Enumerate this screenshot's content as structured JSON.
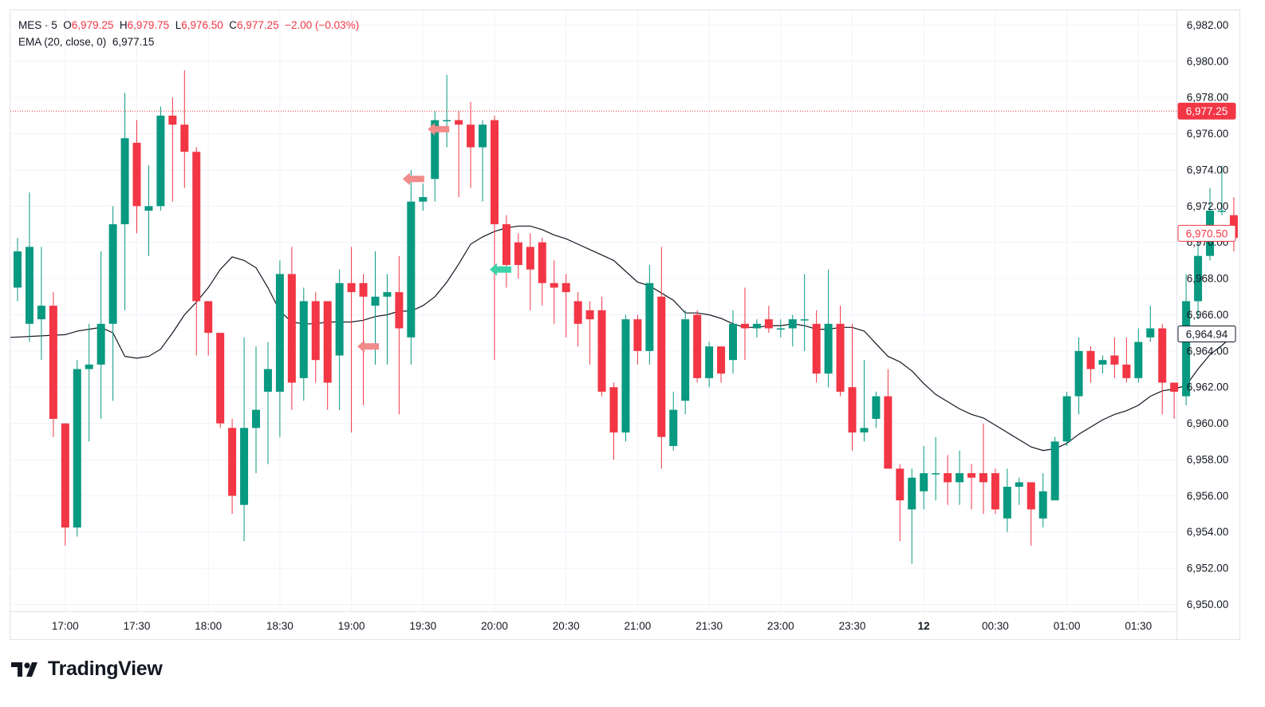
{
  "legend": {
    "symbol": "MES · 5",
    "open_label": "O",
    "open": "6,979.25",
    "high_label": "H",
    "high": "6,979.75",
    "low_label": "L",
    "low": "6,976.50",
    "close_label": "C",
    "close": "6,977.25",
    "change": "−2.00 (−0.03%)",
    "ema_label": "EMA (20, close, 0)",
    "ema_value": "6,977.15"
  },
  "branding": {
    "name": "TradingView",
    "logo_icon": "tradingview-logo-icon"
  },
  "colors": {
    "up": "#089981",
    "down": "#f23645",
    "ema": "#131722",
    "grid": "#f0f3fa",
    "axis_text": "#131722",
    "marker_down": "#f28b8b",
    "marker_up": "#3dd3a8"
  },
  "chart_data": {
    "type": "candlestick",
    "ylim": [
      6949.5,
      6982.8
    ],
    "y_ticks": [
      "6,950.00",
      "6,952.00",
      "6,954.00",
      "6,956.00",
      "6,958.00",
      "6,960.00",
      "6,962.00",
      "6,964.00",
      "6,966.00",
      "6,968.00",
      "6,970.00",
      "6,972.00",
      "6,974.00",
      "6,976.00",
      "6,978.00",
      "6,980.00",
      "6,982.00"
    ],
    "x_ticks": [
      {
        "label": "17:00",
        "bar": 4,
        "bold": false
      },
      {
        "label": "17:30",
        "bar": 10,
        "bold": false
      },
      {
        "label": "18:00",
        "bar": 16,
        "bold": false
      },
      {
        "label": "18:30",
        "bar": 22,
        "bold": false
      },
      {
        "label": "19:00",
        "bar": 28,
        "bold": false
      },
      {
        "label": "19:30",
        "bar": 34,
        "bold": false
      },
      {
        "label": "20:00",
        "bar": 40,
        "bold": false
      },
      {
        "label": "20:30",
        "bar": 46,
        "bold": false
      },
      {
        "label": "21:00",
        "bar": 52,
        "bold": false
      },
      {
        "label": "21:30",
        "bar": 58,
        "bold": false
      },
      {
        "label": "23:00",
        "bar": 64,
        "bold": false
      },
      {
        "label": "23:30",
        "bar": 70,
        "bold": false
      },
      {
        "label": "12",
        "bar": 76,
        "bold": true
      },
      {
        "label": "00:30",
        "bar": 82,
        "bold": false
      },
      {
        "label": "01:00",
        "bar": 88,
        "bold": false
      },
      {
        "label": "01:30",
        "bar": 94,
        "bold": false
      }
    ],
    "candles": [
      [
        6967.5,
        6969.5,
        6966.75,
        6970.25
      ],
      [
        6965.5,
        6969.75,
        6964.5,
        6972.75
      ],
      [
        6965.75,
        6966.5,
        6963.5,
        6969.75
      ],
      [
        6966.5,
        6960.25,
        6959.25,
        6967.25
      ],
      [
        6960.0,
        6954.25,
        6953.25,
        6960.0
      ],
      [
        6954.25,
        6963.0,
        6953.75,
        6963.5
      ],
      [
        6963.0,
        6963.25,
        6959.0,
        6965.5
      ],
      [
        6963.25,
        6965.5,
        6960.25,
        6969.5
      ],
      [
        6965.5,
        6971.0,
        6961.25,
        6972.0
      ],
      [
        6971.0,
        6975.75,
        6966.25,
        6978.25
      ],
      [
        6975.5,
        6972.0,
        6970.5,
        6976.75
      ],
      [
        6971.75,
        6972.0,
        6969.25,
        6974.25
      ],
      [
        6972.0,
        6977.0,
        6971.75,
        6977.5
      ],
      [
        6977.0,
        6976.5,
        6972.25,
        6978.0
      ],
      [
        6976.5,
        6975.0,
        6973.0,
        6979.5
      ],
      [
        6975.0,
        6966.75,
        6963.75,
        6975.25
      ],
      [
        6966.75,
        6965.0,
        6963.75,
        6966.75
      ],
      [
        6965.0,
        6960.0,
        6959.75,
        6965.0
      ],
      [
        6959.75,
        6956.0,
        6955.0,
        6960.25
      ],
      [
        6955.5,
        6959.75,
        6953.5,
        6964.75
      ],
      [
        6959.75,
        6960.75,
        6957.25,
        6964.25
      ],
      [
        6961.75,
        6963.0,
        6957.75,
        6964.5
      ],
      [
        6961.75,
        6968.25,
        6959.25,
        6969.0
      ],
      [
        6968.25,
        6962.25,
        6960.75,
        6969.75
      ],
      [
        6962.5,
        6966.75,
        6961.25,
        6967.5
      ],
      [
        6966.75,
        6963.5,
        6962.25,
        6967.25
      ],
      [
        6966.75,
        6962.25,
        6960.75,
        6966.5
      ],
      [
        6963.75,
        6967.75,
        6960.75,
        6968.5
      ],
      [
        6967.75,
        6967.25,
        6959.5,
        6969.75
      ],
      [
        6967.75,
        6967.0,
        6961.0,
        6968.25
      ],
      [
        6966.5,
        6967.0,
        6963.25,
        6969.5
      ],
      [
        6967.0,
        6967.25,
        6963.25,
        6968.25
      ],
      [
        6967.25,
        6965.25,
        6960.5,
        6969.25
      ],
      [
        6964.75,
        6972.25,
        6963.25,
        6974.0
      ],
      [
        6972.25,
        6972.5,
        6971.75,
        6973.25
      ],
      [
        6973.5,
        6976.75,
        6972.25,
        6977.25
      ],
      [
        6976.75,
        6976.75,
        6975.25,
        6979.25
      ],
      [
        6976.75,
        6976.5,
        6972.5,
        6977.25
      ],
      [
        6976.5,
        6975.25,
        6973.0,
        6977.75
      ],
      [
        6975.25,
        6976.5,
        6972.25,
        6976.75
      ],
      [
        6976.75,
        6971.0,
        6963.5,
        6977.0
      ],
      [
        6971.0,
        6968.75,
        6967.5,
        6971.5
      ],
      [
        6970.0,
        6968.75,
        6968.0,
        6970.5
      ],
      [
        6969.75,
        6968.5,
        6966.25,
        6970.5
      ],
      [
        6970.0,
        6967.75,
        6966.5,
        6970.25
      ],
      [
        6967.75,
        6967.5,
        6965.5,
        6969.0
      ],
      [
        6967.75,
        6967.25,
        6964.75,
        6968.25
      ],
      [
        6966.75,
        6965.5,
        6964.25,
        6967.25
      ],
      [
        6966.25,
        6965.75,
        6963.25,
        6966.75
      ],
      [
        6966.25,
        6961.75,
        6961.5,
        6967.0
      ],
      [
        6962.0,
        6959.5,
        6958.0,
        6962.25
      ],
      [
        6959.5,
        6965.75,
        6959.0,
        6966.0
      ],
      [
        6965.75,
        6964.0,
        6963.25,
        6966.0
      ],
      [
        6964.0,
        6967.75,
        6963.25,
        6968.75
      ],
      [
        6967.0,
        6959.25,
        6957.5,
        6969.75
      ],
      [
        6958.75,
        6960.75,
        6958.5,
        6961.75
      ],
      [
        6961.25,
        6965.75,
        6960.5,
        6966.25
      ],
      [
        6966.0,
        6962.5,
        6962.25,
        6966.25
      ],
      [
        6962.5,
        6964.25,
        6962.0,
        6964.5
      ],
      [
        6964.25,
        6962.75,
        6962.25,
        6964.25
      ],
      [
        6963.5,
        6965.5,
        6962.75,
        6966.25
      ],
      [
        6965.5,
        6965.25,
        6963.5,
        6967.5
      ],
      [
        6965.25,
        6965.5,
        6964.75,
        6965.75
      ],
      [
        6965.75,
        6965.25,
        6965.0,
        6966.5
      ],
      [
        6965.25,
        6965.25,
        6964.75,
        6965.75
      ],
      [
        6965.25,
        6965.75,
        6964.25,
        6966.0
      ],
      [
        6965.75,
        6965.75,
        6964.0,
        6968.25
      ],
      [
        6965.5,
        6962.75,
        6962.25,
        6966.25
      ],
      [
        6962.75,
        6965.5,
        6962.0,
        6968.5
      ],
      [
        6965.5,
        6961.75,
        6961.5,
        6966.5
      ],
      [
        6962.0,
        6959.5,
        6958.5,
        6965.5
      ],
      [
        6959.5,
        6959.75,
        6959.0,
        6963.5
      ],
      [
        6960.25,
        6961.5,
        6959.75,
        6961.75
      ],
      [
        6961.5,
        6957.5,
        6957.5,
        6963.0
      ],
      [
        6957.5,
        6955.75,
        6953.5,
        6957.75
      ],
      [
        6955.25,
        6957.0,
        6952.25,
        6957.5
      ],
      [
        6956.25,
        6957.25,
        6955.25,
        6958.75
      ],
      [
        6957.25,
        6957.25,
        6955.75,
        6959.25
      ],
      [
        6957.25,
        6956.75,
        6955.5,
        6958.25
      ],
      [
        6956.75,
        6957.25,
        6955.5,
        6958.5
      ],
      [
        6957.25,
        6957.0,
        6955.25,
        6957.75
      ],
      [
        6957.25,
        6956.75,
        6955.0,
        6960.0
      ],
      [
        6957.25,
        6955.25,
        6955.0,
        6957.5
      ],
      [
        6954.75,
        6956.5,
        6954.0,
        6957.5
      ],
      [
        6956.5,
        6956.75,
        6955.5,
        6957.0
      ],
      [
        6956.75,
        6955.25,
        6953.25,
        6956.75
      ],
      [
        6954.75,
        6956.25,
        6954.25,
        6957.25
      ],
      [
        6955.75,
        6959.0,
        6955.75,
        6959.25
      ],
      [
        6959.0,
        6961.5,
        6958.75,
        6961.75
      ],
      [
        6961.5,
        6964.0,
        6960.5,
        6964.75
      ],
      [
        6964.0,
        6963.0,
        6962.25,
        6964.25
      ],
      [
        6963.25,
        6963.5,
        6962.75,
        6963.75
      ],
      [
        6963.75,
        6963.25,
        6962.5,
        6964.75
      ],
      [
        6963.25,
        6962.5,
        6962.25,
        6964.75
      ],
      [
        6962.5,
        6964.5,
        6962.25,
        6965.25
      ],
      [
        6964.75,
        6965.25,
        6964.5,
        6966.5
      ],
      [
        6965.25,
        6962.25,
        6960.5,
        6965.5
      ],
      [
        6962.25,
        6961.75,
        6960.25,
        6962.25
      ],
      [
        6961.5,
        6966.75,
        6961.0,
        6968.25
      ],
      [
        6966.75,
        6969.25,
        6965.75,
        6970.5
      ],
      [
        6969.25,
        6971.75,
        6969.0,
        6973.0
      ],
      [
        6971.75,
        6971.75,
        6971.5,
        6974.25
      ],
      [
        6971.5,
        6970.25,
        6969.5,
        6972.5
      ]
    ],
    "ema": [
      6964.9,
      6965.1,
      6965.2,
      6965.3,
      6965.0,
      6963.7,
      6963.6,
      6963.7,
      6964.1,
      6965.0,
      6966.0,
      6966.7,
      6967.5,
      6968.5,
      6969.2,
      6969.0,
      6968.6,
      6967.5,
      6966.2,
      6965.6,
      6965.5,
      6965.5,
      6965.6,
      6965.6,
      6965.6,
      6965.7,
      6965.9,
      6966.0,
      6966.2,
      6966.2,
      6966.5,
      6967.0,
      6967.8,
      6968.8,
      6969.9,
      6970.3,
      6970.6,
      6970.8,
      6970.9,
      6970.9,
      6970.7,
      6970.4,
      6970.2,
      6969.9,
      6969.6,
      6969.3,
      6969.0,
      6968.4,
      6967.8,
      6967.6,
      6967.2,
      6966.8,
      6966.1,
      6966.1,
      6966.0,
      6965.8,
      6965.5,
      6965.3,
      6965.3,
      6965.4,
      6965.4,
      6965.5,
      6965.4,
      6965.2,
      6965.2,
      6965.3,
      6965.3,
      6965.1,
      6964.4,
      6963.7,
      6963.4,
      6962.9,
      6962.2,
      6961.6,
      6961.2,
      6960.8,
      6960.5,
      6960.3,
      6959.9,
      6959.5,
      6959.1,
      6958.7,
      6958.5,
      6958.6,
      6958.9,
      6959.4,
      6959.8,
      6960.2,
      6960.5,
      6960.7,
      6961.0,
      6961.5,
      6961.8,
      6961.9,
      6962.1,
      6963.0,
      6963.8,
      6964.3,
      6964.9
    ],
    "annotations": [
      {
        "type": "arrow-left",
        "bar": 28.5,
        "price": 6964.25,
        "color": "marker_down"
      },
      {
        "type": "arrow-left",
        "bar": 32.3,
        "price": 6973.5,
        "color": "marker_down"
      },
      {
        "type": "arrow-left",
        "bar": 34.4,
        "price": 6976.25,
        "color": "marker_down"
      },
      {
        "type": "arrow-left",
        "bar": 39.6,
        "price": 6968.5,
        "color": "marker_up"
      }
    ],
    "last_price": {
      "price": 6977.25,
      "label": "6,977.25"
    },
    "price_labels": [
      {
        "price": 6970.5,
        "label": "6,970.50",
        "style": "outline-red"
      },
      {
        "price": 6964.94,
        "label": "6,964.94",
        "style": "outline-black"
      }
    ]
  }
}
